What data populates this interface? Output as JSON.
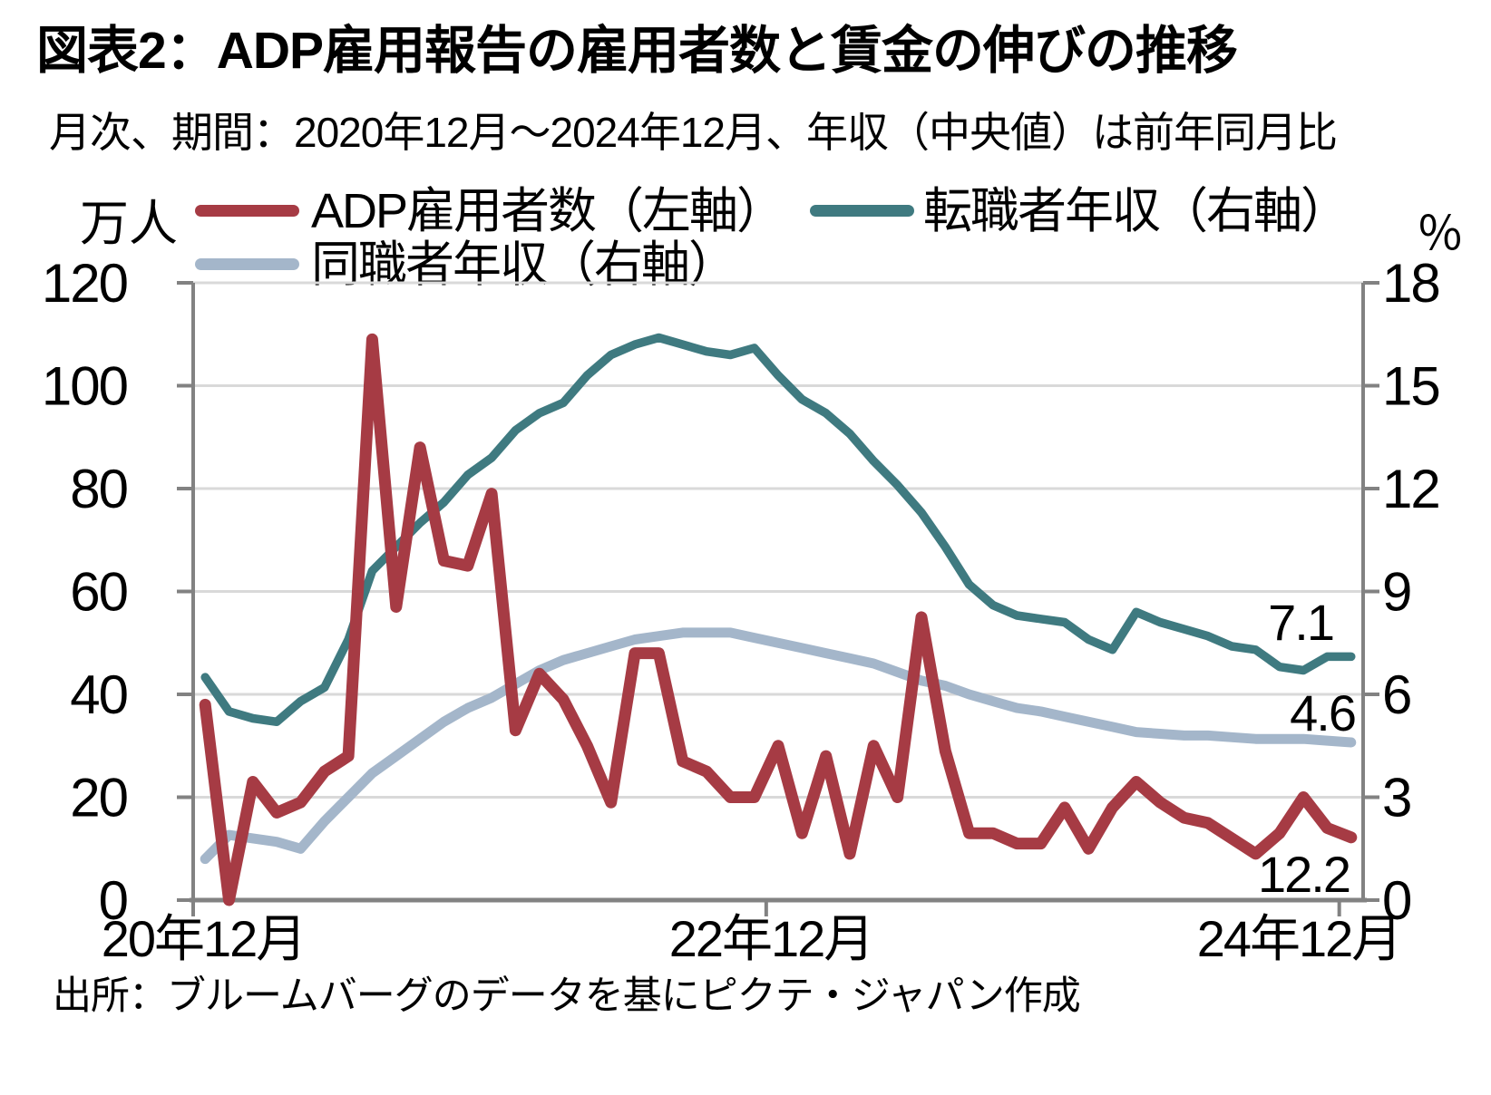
{
  "header": {
    "title": "図表2：ADP雇用報告の雇用者数と賃金の伸びの推移",
    "subtitle": "月次、期間：2020年12月～2024年12月、年収（中央値）は前年同月比"
  },
  "footer": {
    "source": "出所：ブルームバーグのデータを基にピクテ・ジャパン作成"
  },
  "axes": {
    "left": {
      "unit": "万人",
      "ticks": [
        0,
        20,
        40,
        60,
        80,
        100,
        120
      ],
      "max": 120
    },
    "right": {
      "unit": "％",
      "ticks": [
        0,
        3,
        6,
        9,
        12,
        15,
        18
      ],
      "max": 18
    },
    "x": {
      "labels": [
        "20年12月",
        "22年12月",
        "24年12月"
      ]
    }
  },
  "legend": {
    "items": [
      {
        "label": "ADP雇用者数（左軸）",
        "color": "#A63B44"
      },
      {
        "label": "転職者年収（右軸）",
        "color": "#3F7A80"
      },
      {
        "label": "同職者年収（右軸）",
        "color": "#A4B6CA"
      }
    ]
  },
  "colors": {
    "grid": "#D9D9D9",
    "axis": "#828282",
    "text": "#000000",
    "background": "#FFFFFF",
    "adp_red": "#A63B44",
    "changer_teal": "#3F7A80",
    "stayer_gray_blue": "#A4B6CA"
  },
  "chart_data": {
    "type": "line",
    "title": "図表2：ADP雇用報告の雇用者数と賃金の伸びの推移",
    "x": {
      "start": "2020-12",
      "end": "2024-12",
      "points": 49,
      "tick_positions": [
        0,
        24,
        48
      ],
      "tick_labels": [
        "20年12月",
        "22年12月",
        "24年12月"
      ]
    },
    "ylim_left": [
      0,
      120
    ],
    "ylim_right": [
      0,
      18
    ],
    "grid": "horizontal",
    "legend_position": "top",
    "series": [
      {
        "name": "転職者年収（右軸）",
        "axis": "right",
        "color": "#3F7A80",
        "values": [
          6.5,
          5.5,
          5.3,
          5.2,
          5.8,
          6.2,
          7.6,
          9.6,
          10.3,
          11.0,
          11.6,
          12.4,
          12.9,
          13.7,
          14.2,
          14.5,
          15.3,
          15.9,
          16.2,
          16.4,
          16.2,
          16.0,
          15.9,
          16.1,
          15.3,
          14.6,
          14.2,
          13.6,
          12.8,
          12.1,
          11.3,
          10.3,
          9.2,
          8.6,
          8.3,
          8.2,
          8.1,
          7.6,
          7.3,
          8.4,
          8.1,
          7.9,
          7.7,
          7.4,
          7.3,
          6.8,
          6.7,
          7.1,
          7.1
        ]
      },
      {
        "name": "同職者年収（右軸）",
        "axis": "right",
        "color": "#A4B6CA",
        "values": [
          1.2,
          1.9,
          1.8,
          1.7,
          1.5,
          2.3,
          3.0,
          3.7,
          4.2,
          4.7,
          5.2,
          5.6,
          5.9,
          6.3,
          6.7,
          7.0,
          7.2,
          7.4,
          7.6,
          7.7,
          7.8,
          7.8,
          7.8,
          7.65,
          7.5,
          7.35,
          7.2,
          7.05,
          6.9,
          6.65,
          6.4,
          6.25,
          6.0,
          5.8,
          5.6,
          5.5,
          5.35,
          5.2,
          5.05,
          4.9,
          4.85,
          4.8,
          4.8,
          4.75,
          4.7,
          4.7,
          4.7,
          4.65,
          4.6
        ]
      },
      {
        "name": "ADP雇用者数（左軸）",
        "axis": "left",
        "color": "#A63B44",
        "values": [
          38,
          0,
          23,
          17,
          19,
          25,
          28,
          109,
          57,
          88,
          66,
          65,
          79,
          33,
          44,
          39,
          30,
          19,
          48,
          48,
          27,
          25,
          20,
          20,
          30,
          13,
          28,
          9,
          30,
          20,
          55,
          29,
          13,
          13,
          11,
          11,
          18,
          10,
          18,
          23,
          19,
          16,
          15,
          12,
          9,
          13,
          20,
          14,
          12.2
        ]
      }
    ],
    "end_labels": [
      {
        "text": "7.1",
        "series": "転職者年収（右軸）"
      },
      {
        "text": "4.6",
        "series": "同職者年収（右軸）"
      },
      {
        "text": "12.2",
        "series": "ADP雇用者数（左軸）"
      }
    ]
  }
}
